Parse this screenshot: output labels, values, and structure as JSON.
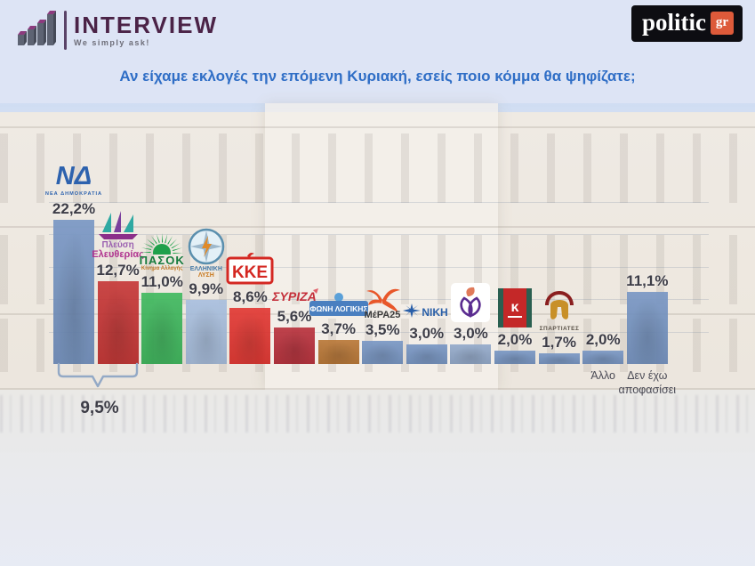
{
  "header": {
    "interview": {
      "title": "INTERVIEW",
      "tagline": "We simply ask!"
    },
    "politic": {
      "text": "politic",
      "suffix": "gr"
    }
  },
  "question": "Αν είχαμε εκλογές την επόμενη Κυριακή, εσείς ποιο κόμμα θα ψηφίζατε;",
  "chart_data": {
    "type": "bar",
    "title": "Αν είχαμε εκλογές την επόμενη Κυριακή, εσείς ποιο κόμμα θα ψηφίζατε;",
    "categories": [
      "Νέα Δημοκρατία",
      "Πλεύση Ελευθερίας",
      "ΠΑΣΟΚ",
      "Ελληνική Λύση",
      "ΚΚΕ",
      "ΣΥΡΙΖΑ",
      "Φωνή Λογικής",
      "ΜέΡΑ25",
      "ΝΙΚΗ",
      "Νέα Αριστερά",
      "Κίνημα Δημοκρατίας",
      "Σπαρτιάτες",
      "Άλλο",
      "Δεν έχω αποφασίσει"
    ],
    "values": [
      22.2,
      12.7,
      11.0,
      9.9,
      8.6,
      5.6,
      3.7,
      3.5,
      3.0,
      3.0,
      2.0,
      1.7,
      2.0,
      11.1
    ],
    "value_labels": [
      "22,2%",
      "12,7%",
      "11,0%",
      "9,9%",
      "8,6%",
      "5,6%",
      "3,7%",
      "3,5%",
      "3,0%",
      "3,0%",
      "2,0%",
      "1,7%",
      "2,0%",
      "11,1%"
    ],
    "ylim": [
      0,
      25
    ],
    "grid": true,
    "legend": "none",
    "annotation": {
      "label": "9,5%",
      "spans": [
        "Νέα Δημοκρατία",
        "Πλεύση Ελευθερίας"
      ]
    },
    "parties": [
      {
        "name": "Νέα Δημοκρατία",
        "logo": "nd-logo",
        "logo_text": "ΝΔ",
        "logo_subtext": "ΝΕΑ ΔΗΜΟΚΡΑΤΙΑ",
        "value": 22.2,
        "label": "22,2%",
        "color": "#7191c1"
      },
      {
        "name": "Πλεύση Ελευθερίας",
        "logo": "plefsi-logo",
        "logo_text": "Πλεύση",
        "logo_subtext": "Ελευθερίας",
        "value": 12.7,
        "label": "12,7%",
        "color": "#c32c2c"
      },
      {
        "name": "ΠΑΣΟΚ",
        "logo": "pasok-logo",
        "logo_text": "ΠΑΣΟΚ",
        "logo_subtext": "Κίνημα Αλλαγής",
        "value": 11.0,
        "label": "11,0%",
        "color": "#35b556"
      },
      {
        "name": "Ελληνική Λύση",
        "logo": "elliniki-lysi-logo",
        "logo_text": "ΕΛΛΗΝΙΚΗ",
        "logo_subtext": "ΛΥΣΗ",
        "value": 9.9,
        "label": "9,9%",
        "color": "#a4bcdd"
      },
      {
        "name": "ΚΚΕ",
        "logo": "kke-logo",
        "logo_text": "ΚΚΕ",
        "value": 8.6,
        "label": "8,6%",
        "color": "#e12d28"
      },
      {
        "name": "ΣΥΡΙΖΑ",
        "logo": "syriza-logo",
        "logo_text": "ΣΥΡΙΖΑ",
        "value": 5.6,
        "label": "5,6%",
        "color": "#b52632"
      },
      {
        "name": "Φωνή Λογικής",
        "logo": "foni-logikis-logo",
        "logo_text": "ΦΩΝΗ ΛΟΓΙΚΗΣ",
        "value": 3.7,
        "label": "3,7%",
        "color": "#b5702c"
      },
      {
        "name": "ΜέΡΑ25",
        "logo": "mera25-logo",
        "logo_text": "ΜέΡΑ25",
        "value": 3.5,
        "label": "3,5%",
        "color": "#7191c1"
      },
      {
        "name": "ΝΙΚΗ",
        "logo": "niki-logo",
        "logo_text": "ΝΙΚΗ",
        "value": 3.0,
        "label": "3,0%",
        "color": "#7191c1"
      },
      {
        "name": "Νέα Αριστερά",
        "logo": "nea-aristera-logo",
        "value": 3.0,
        "label": "3,0%",
        "color": "#8da5c8"
      },
      {
        "name": "Κίνημα Δημοκρατίας",
        "logo": "kinima-dimokratias-logo",
        "value": 2.0,
        "label": "2,0%",
        "color": "#7191c1"
      },
      {
        "name": "Σπαρτιάτες",
        "logo": "spartiates-logo",
        "logo_text": "ΣΠΑΡΤΙΑΤΕΣ",
        "value": 1.7,
        "label": "1,7%",
        "color": "#7191c1"
      },
      {
        "name": "Άλλο",
        "axis_label": "Άλλο",
        "value": 2.0,
        "label": "2,0%",
        "color": "#7191c1"
      },
      {
        "name": "Δεν έχω αποφασίσει",
        "axis_label": "Δεν έχω αποφασίσει",
        "value": 11.1,
        "label": "11,1%",
        "color": "#7191c1"
      }
    ]
  }
}
